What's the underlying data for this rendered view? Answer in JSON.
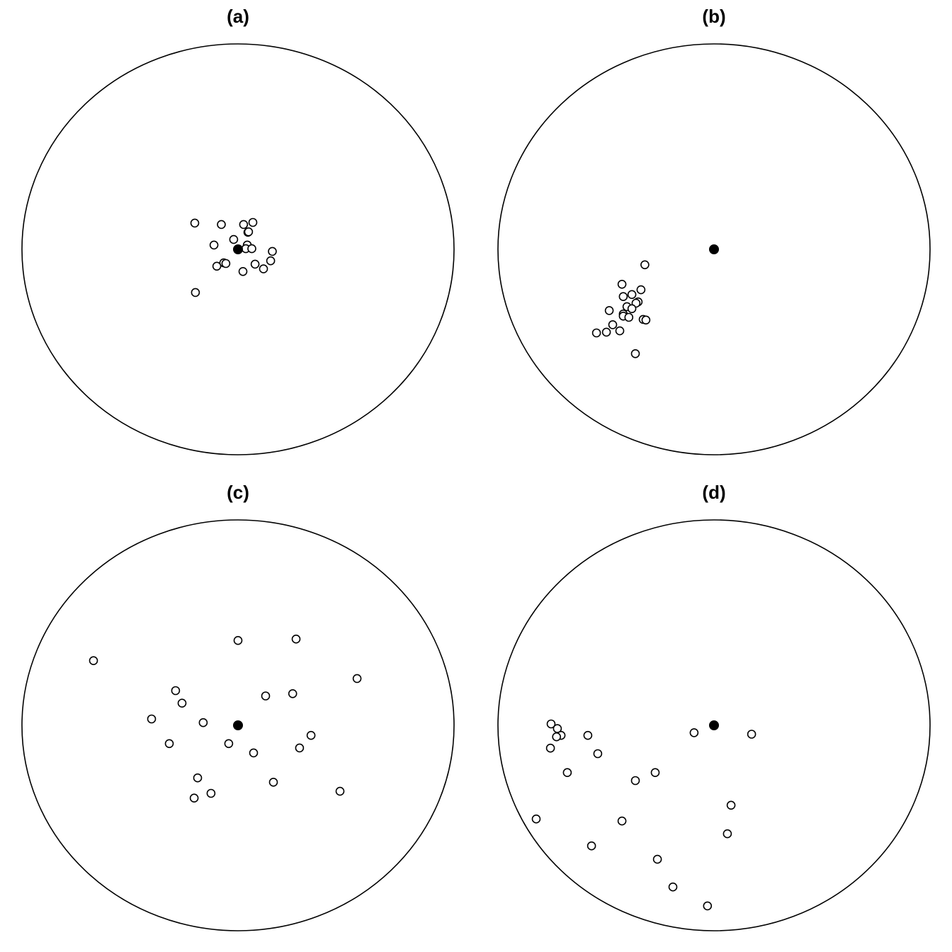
{
  "chart_data": [
    {
      "type": "scatter",
      "title": "(a)",
      "boundary": "circle",
      "center_point": {
        "x": 0,
        "y": 0,
        "marker": "filled-circle"
      },
      "x_range": [
        -1,
        1
      ],
      "y_range": [
        -1,
        1
      ],
      "points": [
        {
          "x": -0.2,
          "y": 0.128
        },
        {
          "x": -0.077,
          "y": 0.121
        },
        {
          "x": 0.026,
          "y": 0.121
        },
        {
          "x": 0.069,
          "y": 0.131
        },
        {
          "x": 0.046,
          "y": 0.083
        },
        {
          "x": 0.049,
          "y": 0.085
        },
        {
          "x": -0.02,
          "y": 0.048
        },
        {
          "x": -0.111,
          "y": 0.021
        },
        {
          "x": 0.043,
          "y": 0.021
        },
        {
          "x": 0.036,
          "y": 0.003
        },
        {
          "x": 0.064,
          "y": 0.003
        },
        {
          "x": 0.159,
          "y": -0.01
        },
        {
          "x": 0.151,
          "y": -0.056
        },
        {
          "x": -0.066,
          "y": -0.066
        },
        {
          "x": -0.056,
          "y": -0.069
        },
        {
          "x": -0.098,
          "y": -0.082
        },
        {
          "x": 0.079,
          "y": -0.072
        },
        {
          "x": 0.118,
          "y": -0.095
        },
        {
          "x": 0.023,
          "y": -0.108
        },
        {
          "x": -0.197,
          "y": -0.21
        }
      ]
    },
    {
      "type": "scatter",
      "title": "(b)",
      "boundary": "circle",
      "center_point": {
        "x": 0,
        "y": 0,
        "marker": "filled-circle"
      },
      "x_range": [
        -1,
        1
      ],
      "y_range": [
        -1,
        1
      ],
      "points": [
        {
          "x": -0.32,
          "y": -0.075
        },
        {
          "x": -0.426,
          "y": -0.17
        },
        {
          "x": -0.338,
          "y": -0.197
        },
        {
          "x": -0.42,
          "y": -0.23
        },
        {
          "x": -0.38,
          "y": -0.22
        },
        {
          "x": -0.351,
          "y": -0.256
        },
        {
          "x": -0.361,
          "y": -0.262
        },
        {
          "x": -0.403,
          "y": -0.279
        },
        {
          "x": -0.38,
          "y": -0.289
        },
        {
          "x": -0.485,
          "y": -0.298
        },
        {
          "x": -0.42,
          "y": -0.315
        },
        {
          "x": -0.42,
          "y": -0.325
        },
        {
          "x": -0.394,
          "y": -0.331
        },
        {
          "x": -0.328,
          "y": -0.341
        },
        {
          "x": -0.315,
          "y": -0.344
        },
        {
          "x": -0.469,
          "y": -0.367
        },
        {
          "x": -0.436,
          "y": -0.397
        },
        {
          "x": -0.498,
          "y": -0.403
        },
        {
          "x": -0.544,
          "y": -0.407
        },
        {
          "x": -0.364,
          "y": -0.508
        }
      ]
    },
    {
      "type": "scatter",
      "title": "(c)",
      "boundary": "circle",
      "center_point": {
        "x": 0,
        "y": 0,
        "marker": "filled-circle"
      },
      "x_range": [
        -1,
        1
      ],
      "y_range": [
        -1,
        1
      ],
      "points": [
        {
          "x": 0.0,
          "y": 0.413
        },
        {
          "x": 0.269,
          "y": 0.42
        },
        {
          "x": -0.669,
          "y": 0.315
        },
        {
          "x": 0.551,
          "y": 0.228
        },
        {
          "x": -0.289,
          "y": 0.169
        },
        {
          "x": -0.259,
          "y": 0.108
        },
        {
          "x": 0.128,
          "y": 0.143
        },
        {
          "x": 0.253,
          "y": 0.154
        },
        {
          "x": -0.4,
          "y": 0.031
        },
        {
          "x": -0.161,
          "y": 0.013
        },
        {
          "x": -0.318,
          "y": -0.089
        },
        {
          "x": -0.043,
          "y": -0.089
        },
        {
          "x": 0.072,
          "y": -0.134
        },
        {
          "x": 0.285,
          "y": -0.11
        },
        {
          "x": 0.338,
          "y": -0.049
        },
        {
          "x": -0.187,
          "y": -0.256
        },
        {
          "x": 0.164,
          "y": -0.277
        },
        {
          "x": 0.472,
          "y": -0.321
        },
        {
          "x": -0.125,
          "y": -0.331
        },
        {
          "x": -0.203,
          "y": -0.354
        }
      ]
    },
    {
      "type": "scatter",
      "title": "(d)",
      "boundary": "circle",
      "center_point": {
        "x": 0,
        "y": 0,
        "marker": "filled-circle"
      },
      "x_range": [
        -1,
        1
      ],
      "y_range": [
        -1,
        1
      ],
      "points": [
        {
          "x": -0.754,
          "y": 0.007
        },
        {
          "x": -0.725,
          "y": -0.016
        },
        {
          "x": -0.708,
          "y": -0.049
        },
        {
          "x": -0.729,
          "y": -0.056
        },
        {
          "x": -0.584,
          "y": -0.049
        },
        {
          "x": -0.757,
          "y": -0.111
        },
        {
          "x": -0.538,
          "y": -0.138
        },
        {
          "x": -0.092,
          "y": -0.036
        },
        {
          "x": 0.174,
          "y": -0.043
        },
        {
          "x": -0.679,
          "y": -0.23
        },
        {
          "x": -0.272,
          "y": -0.23
        },
        {
          "x": -0.364,
          "y": -0.269
        },
        {
          "x": 0.079,
          "y": -0.389
        },
        {
          "x": -0.823,
          "y": -0.456
        },
        {
          "x": -0.426,
          "y": -0.466
        },
        {
          "x": 0.062,
          "y": -0.528
        },
        {
          "x": -0.567,
          "y": -0.587
        },
        {
          "x": -0.262,
          "y": -0.652
        },
        {
          "x": -0.19,
          "y": -0.787
        },
        {
          "x": -0.03,
          "y": -0.879
        }
      ]
    }
  ]
}
